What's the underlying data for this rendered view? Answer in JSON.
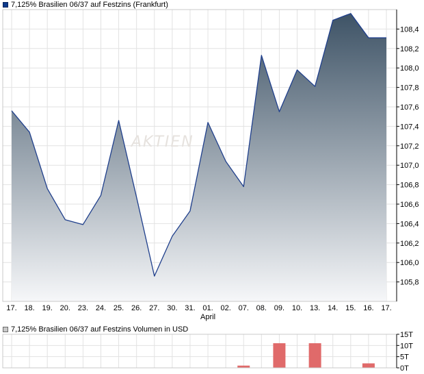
{
  "chart_data": [
    {
      "type": "area",
      "legend": "7,125% Brasilien 06/37 auf Festzins (Frankfurt)",
      "categories": [
        "17.",
        "18.",
        "19.",
        "20.",
        "23.",
        "24.",
        "25.",
        "26.",
        "27.",
        "30.",
        "31.",
        "01.",
        "02.",
        "07.",
        "08.",
        "09.",
        "10.",
        "13.",
        "14.",
        "15.",
        "16.",
        "17."
      ],
      "month_label": "April",
      "month_label_index": 11,
      "values": [
        107.56,
        107.34,
        106.76,
        106.44,
        106.39,
        106.69,
        107.46,
        106.67,
        105.86,
        106.27,
        106.53,
        107.44,
        107.04,
        106.78,
        108.13,
        107.55,
        107.98,
        107.81,
        108.49,
        108.56,
        108.31,
        108.31
      ],
      "ylim": [
        105.6,
        108.6
      ],
      "yticks": [
        "105,8",
        "106,0",
        "106,2",
        "106,4",
        "106,6",
        "106,8",
        "107,0",
        "107,2",
        "107,4",
        "107,6",
        "107,8",
        "108,0",
        "108,2",
        "108,4"
      ],
      "ytick_values": [
        105.8,
        106.0,
        106.2,
        106.4,
        106.6,
        106.8,
        107.0,
        107.2,
        107.4,
        107.6,
        107.8,
        108.0,
        108.2,
        108.4
      ],
      "grid": true,
      "colors": {
        "line": "#1f3f8c",
        "fill_top": "#3e5366",
        "fill_bottom": "#f6f7f9",
        "grid": "#e2e2e2"
      },
      "watermark": "AKTIEN"
    },
    {
      "type": "bar",
      "legend": "7,125% Brasilien 06/37 auf Festzins Volumen in USD",
      "values": [
        0,
        0,
        0,
        0,
        0,
        0,
        0,
        0,
        0,
        0,
        0,
        0,
        0,
        1,
        0,
        11,
        0,
        11,
        0,
        0,
        2,
        0
      ],
      "ylim": [
        0,
        15
      ],
      "yticks": [
        "0T",
        "5T",
        "10T",
        "15T"
      ],
      "ytick_values": [
        0,
        5,
        10,
        15
      ],
      "grid": true,
      "colors": {
        "bar": "#e06a6a",
        "grid": "#e2e2e2"
      }
    }
  ]
}
